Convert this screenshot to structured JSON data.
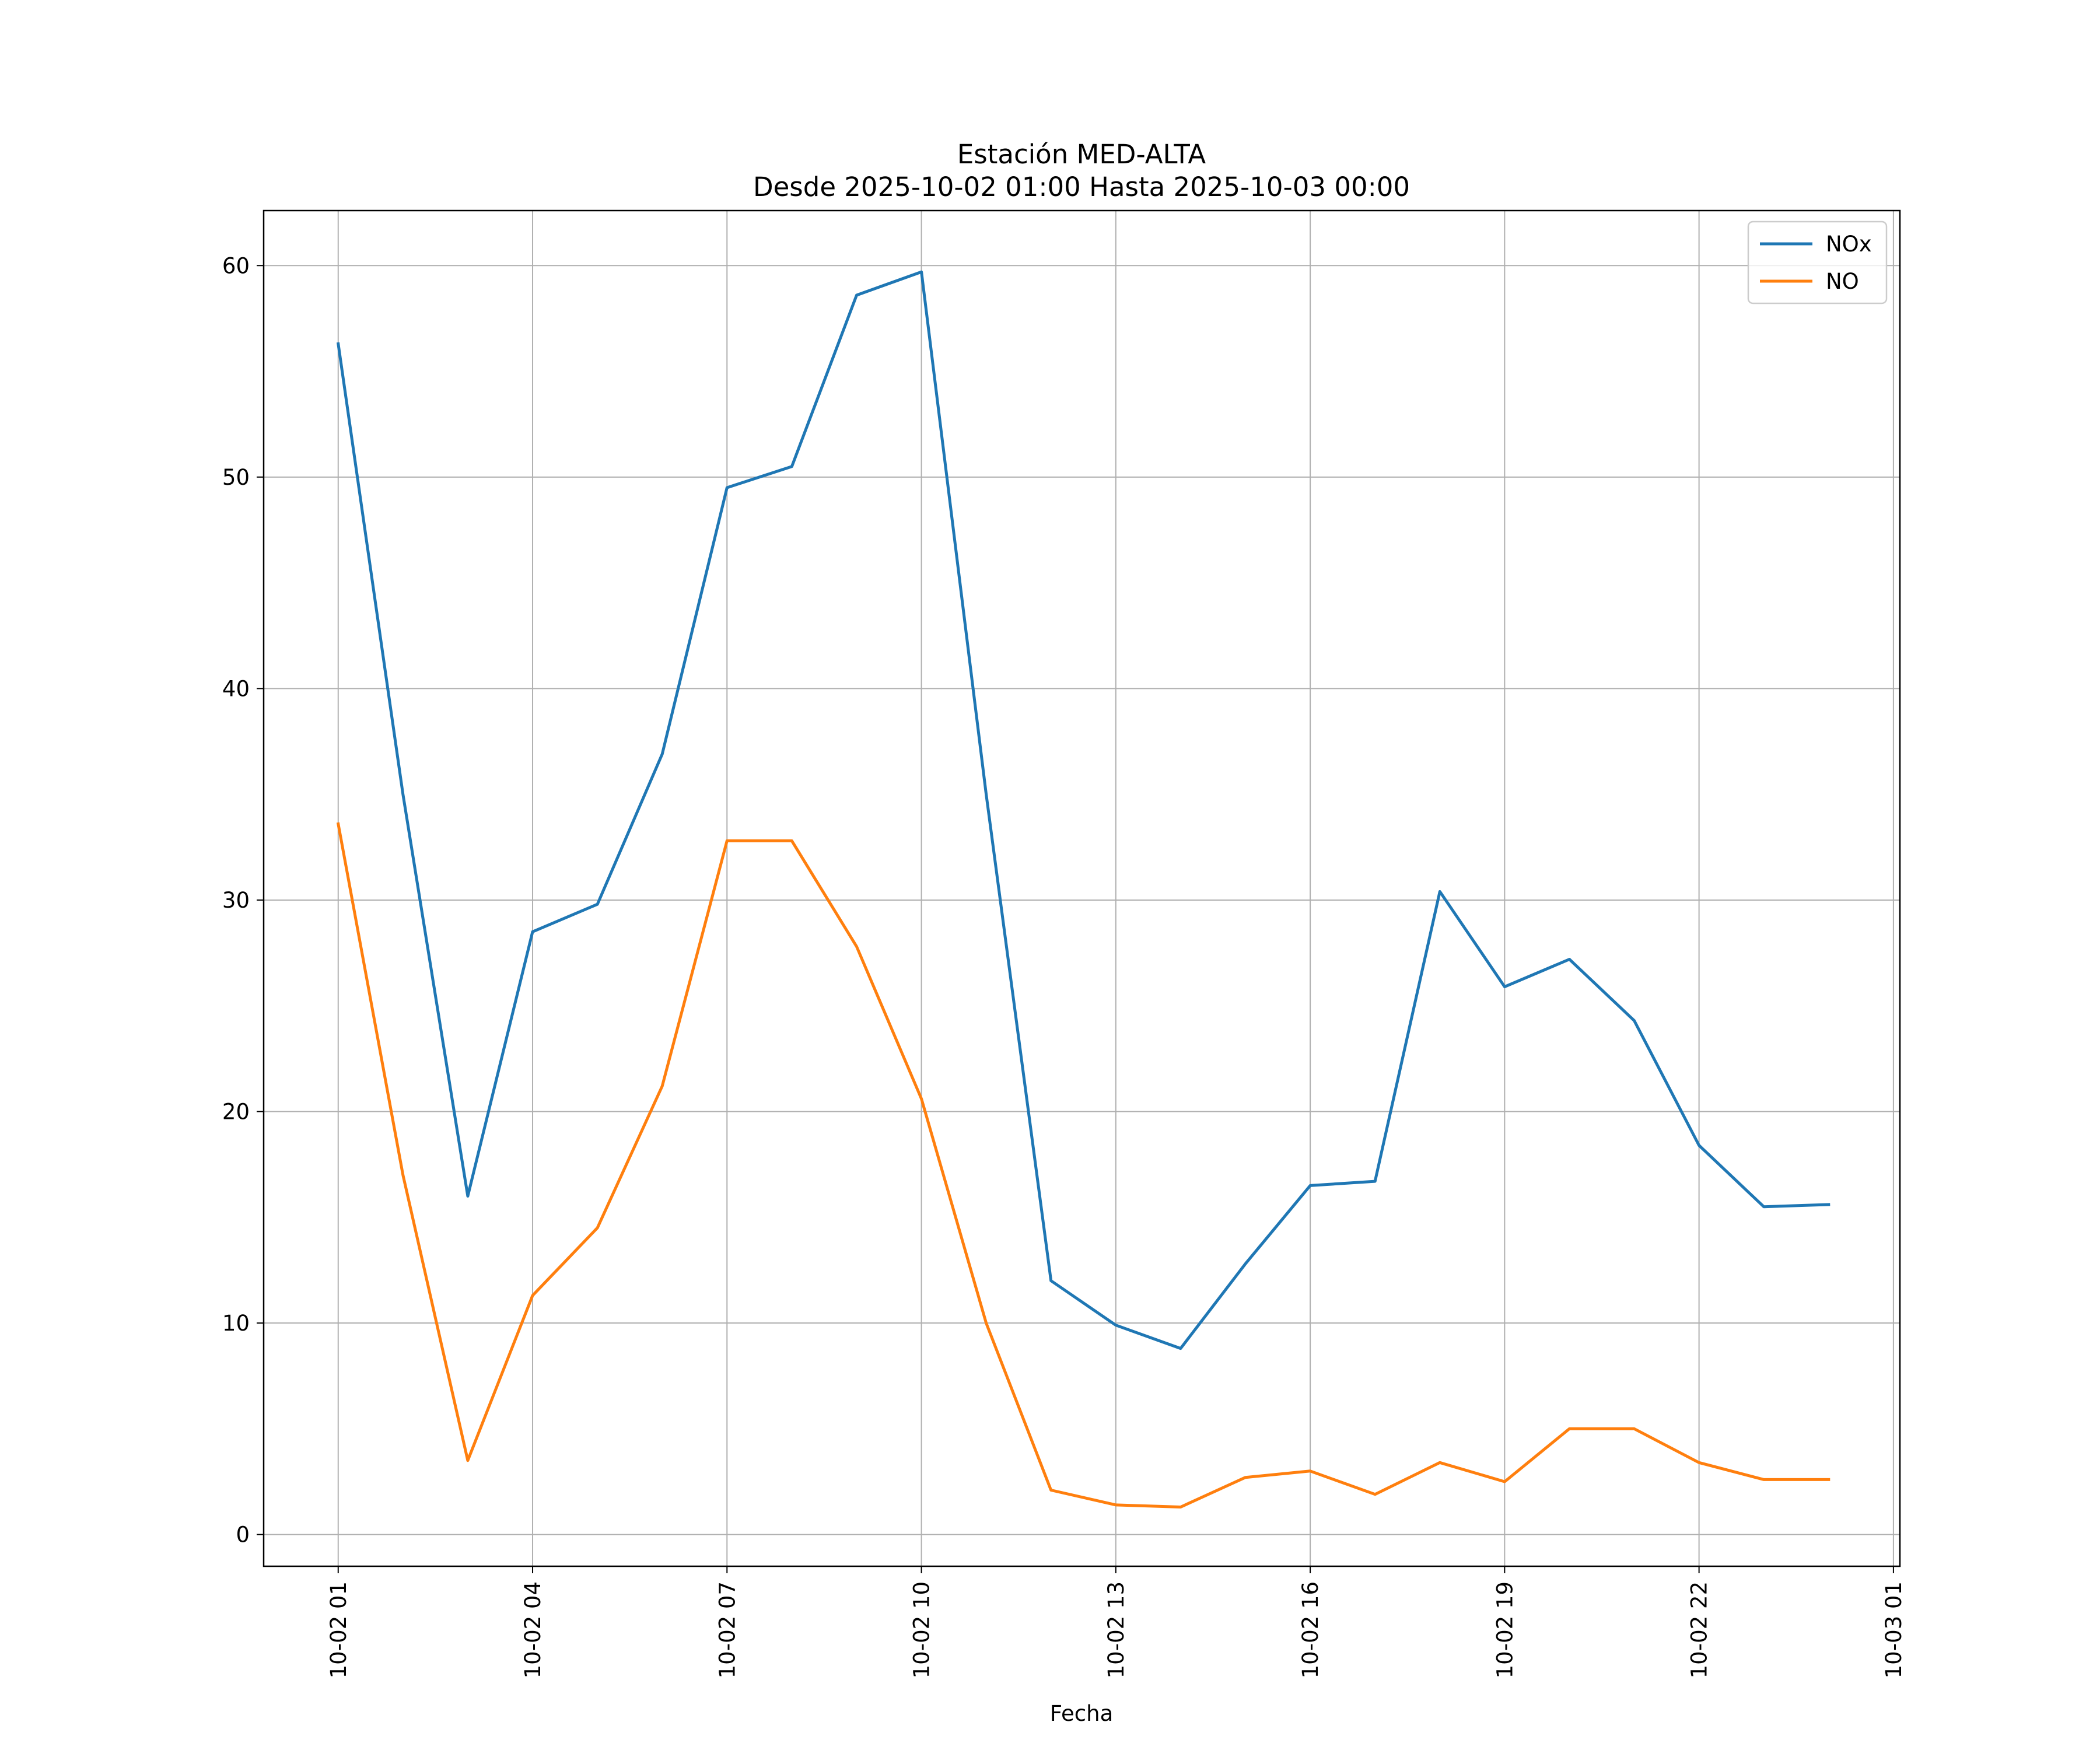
{
  "chart_data": {
    "type": "line",
    "title": "Estación MED-ALTA",
    "subtitle": "Desde 2025-10-02 01:00 Hasta 2025-10-03 00:00",
    "xlabel": "Fecha",
    "ylabel": "",
    "x": [
      1,
      2,
      3,
      4,
      5,
      6,
      7,
      8,
      9,
      10,
      11,
      12,
      13,
      14,
      15,
      16,
      17,
      18,
      19,
      20,
      21,
      22,
      23,
      24
    ],
    "x_unit": "hour of 2025-10-02",
    "xlim": [
      -0.15,
      25.1
    ],
    "ylim": [
      -1.5,
      62.6
    ],
    "xticks": [
      1,
      4,
      7,
      10,
      13,
      16,
      19,
      22,
      25
    ],
    "xtick_labels": [
      "10-02 01",
      "10-02 04",
      "10-02 07",
      "10-02 10",
      "10-02 13",
      "10-02 16",
      "10-02 19",
      "10-02 22",
      "10-03 01"
    ],
    "yticks": [
      0,
      10,
      20,
      30,
      40,
      50,
      60
    ],
    "ytick_labels": [
      "0",
      "10",
      "20",
      "30",
      "40",
      "50",
      "60"
    ],
    "grid": true,
    "legend_position": "top-right",
    "series": [
      {
        "name": "NOx",
        "color": "#1f77b4",
        "values": [
          56.3,
          35.0,
          16.0,
          28.5,
          29.8,
          36.9,
          49.5,
          50.5,
          58.6,
          59.7,
          35.0,
          12.0,
          9.9,
          8.8,
          12.8,
          16.5,
          16.7,
          30.4,
          25.9,
          27.2,
          24.3,
          18.4,
          15.5,
          15.6
        ]
      },
      {
        "name": "NO",
        "color": "#ff7f0e",
        "values": [
          33.6,
          17.0,
          3.5,
          11.3,
          14.5,
          21.2,
          32.8,
          32.8,
          27.8,
          20.6,
          10.0,
          2.1,
          1.4,
          1.3,
          2.7,
          3.0,
          1.9,
          3.4,
          2.5,
          5.0,
          5.0,
          3.4,
          2.6,
          2.6
        ]
      }
    ]
  }
}
